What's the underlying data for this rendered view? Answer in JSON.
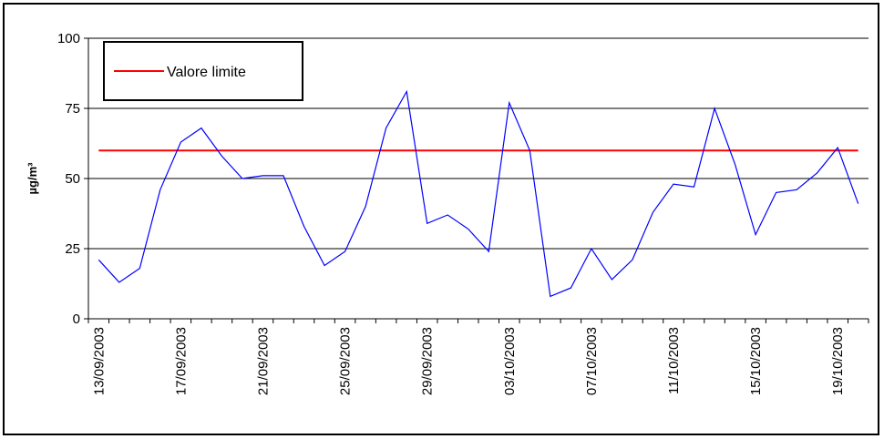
{
  "chart_data": {
    "type": "line",
    "ylabel": "µg/m³",
    "xlabel": "",
    "ylim": [
      0,
      100
    ],
    "yticks": [
      0,
      25,
      50,
      75,
      100
    ],
    "grid": true,
    "legend_position": "top-left",
    "x": [
      "13/09/2003",
      "14/09/2003",
      "15/09/2003",
      "16/09/2003",
      "17/09/2003",
      "18/09/2003",
      "19/09/2003",
      "20/09/2003",
      "21/09/2003",
      "22/09/2003",
      "23/09/2003",
      "24/09/2003",
      "25/09/2003",
      "26/09/2003",
      "27/09/2003",
      "28/09/2003",
      "29/09/2003",
      "30/09/2003",
      "01/10/2003",
      "02/10/2003",
      "03/10/2003",
      "04/10/2003",
      "05/10/2003",
      "06/10/2003",
      "07/10/2003",
      "08/10/2003",
      "09/10/2003",
      "10/10/2003",
      "11/10/2003",
      "12/10/2003",
      "13/10/2003",
      "14/10/2003",
      "15/10/2003",
      "16/10/2003",
      "17/10/2003",
      "18/10/2003",
      "19/10/2003",
      "20/10/2003"
    ],
    "xtick_labels": [
      "13/09/2003",
      "17/09/2003",
      "21/09/2003",
      "25/09/2003",
      "29/09/2003",
      "03/10/2003",
      "07/10/2003",
      "11/10/2003",
      "15/10/2003",
      "19/10/2003"
    ],
    "series": [
      {
        "name": "",
        "color": "#0000ff",
        "values": [
          21,
          13,
          18,
          46,
          63,
          68,
          58,
          50,
          51,
          51,
          33,
          19,
          24,
          40,
          68,
          81,
          34,
          37,
          32,
          24,
          77,
          60,
          8,
          11,
          25,
          14,
          21,
          38,
          48,
          47,
          75,
          55,
          30,
          45,
          46,
          52,
          61,
          41
        ]
      },
      {
        "name": "Valore limite",
        "color": "#ff0000",
        "values": [
          60,
          60,
          60,
          60,
          60,
          60,
          60,
          60,
          60,
          60,
          60,
          60,
          60,
          60,
          60,
          60,
          60,
          60,
          60,
          60,
          60,
          60,
          60,
          60,
          60,
          60,
          60,
          60,
          60,
          60,
          60,
          60,
          60,
          60,
          60,
          60,
          60,
          60
        ]
      }
    ]
  }
}
